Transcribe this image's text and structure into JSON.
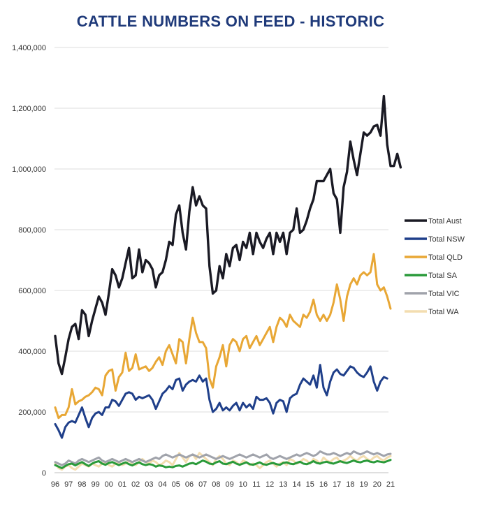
{
  "chart_data": {
    "type": "line",
    "title": "CATTLE NUMBERS ON FEED - HISTORIC",
    "xlabel": "",
    "ylabel": "",
    "x_tick_labels": [
      "96",
      "97",
      "98",
      "99",
      "00",
      "01",
      "02",
      "03",
      "04",
      "05",
      "06",
      "07",
      "08",
      "09",
      "10",
      "11",
      "12",
      "13",
      "14",
      "15",
      "16",
      "17",
      "18",
      "19",
      "20",
      "21"
    ],
    "x_start_year": 1996,
    "points_per_year": 4,
    "y_tick_labels": [
      "0",
      "200,000",
      "400,000",
      "600,000",
      "800,000",
      "1,000,000",
      "1,200,000",
      "1,400,000"
    ],
    "ylim": [
      0,
      1400000
    ],
    "grid": true,
    "legend_position": "right",
    "series": [
      {
        "name": "Total Aust",
        "color": "#1a1a24",
        "values": [
          450000,
          360000,
          325000,
          380000,
          440000,
          480000,
          490000,
          440000,
          535000,
          520000,
          450000,
          500000,
          540000,
          580000,
          560000,
          520000,
          590000,
          670000,
          650000,
          610000,
          640000,
          690000,
          740000,
          640000,
          650000,
          735000,
          660000,
          700000,
          690000,
          670000,
          610000,
          650000,
          660000,
          700000,
          760000,
          750000,
          850000,
          880000,
          790000,
          735000,
          860000,
          940000,
          880000,
          910000,
          880000,
          870000,
          680000,
          590000,
          600000,
          680000,
          640000,
          720000,
          680000,
          740000,
          750000,
          700000,
          760000,
          740000,
          790000,
          720000,
          790000,
          760000,
          740000,
          770000,
          790000,
          720000,
          790000,
          760000,
          790000,
          720000,
          790000,
          800000,
          870000,
          790000,
          800000,
          830000,
          870000,
          900000,
          960000,
          960000,
          960000,
          980000,
          1000000,
          920000,
          900000,
          790000,
          940000,
          990000,
          1090000,
          1030000,
          980000,
          1050000,
          1120000,
          1110000,
          1120000,
          1140000,
          1145000,
          1110000,
          1240000,
          1080000,
          1010000,
          1010000,
          1050000,
          1005000
        ]
      },
      {
        "name": "Total NSW",
        "color": "#1f3f8a",
        "values": [
          160000,
          140000,
          115000,
          150000,
          165000,
          170000,
          165000,
          190000,
          215000,
          180000,
          150000,
          180000,
          195000,
          200000,
          190000,
          215000,
          215000,
          240000,
          235000,
          220000,
          240000,
          260000,
          265000,
          260000,
          240000,
          250000,
          245000,
          250000,
          255000,
          240000,
          210000,
          235000,
          260000,
          270000,
          285000,
          275000,
          305000,
          310000,
          270000,
          290000,
          300000,
          305000,
          300000,
          320000,
          300000,
          310000,
          240000,
          200000,
          210000,
          230000,
          205000,
          215000,
          205000,
          220000,
          230000,
          205000,
          230000,
          215000,
          225000,
          210000,
          250000,
          240000,
          240000,
          245000,
          230000,
          195000,
          230000,
          240000,
          235000,
          200000,
          245000,
          255000,
          260000,
          290000,
          310000,
          300000,
          290000,
          320000,
          280000,
          355000,
          280000,
          255000,
          300000,
          330000,
          340000,
          325000,
          320000,
          335000,
          350000,
          345000,
          330000,
          320000,
          315000,
          330000,
          350000,
          300000,
          270000,
          300000,
          315000,
          310000
        ]
      },
      {
        "name": "Total QLD",
        "color": "#e8a735",
        "values": [
          215000,
          180000,
          190000,
          190000,
          215000,
          275000,
          225000,
          235000,
          240000,
          250000,
          255000,
          265000,
          280000,
          275000,
          255000,
          320000,
          335000,
          340000,
          270000,
          315000,
          330000,
          395000,
          335000,
          345000,
          390000,
          340000,
          345000,
          350000,
          335000,
          345000,
          365000,
          380000,
          355000,
          400000,
          420000,
          390000,
          360000,
          440000,
          430000,
          360000,
          440000,
          510000,
          460000,
          430000,
          430000,
          410000,
          310000,
          280000,
          350000,
          380000,
          420000,
          350000,
          420000,
          440000,
          430000,
          400000,
          440000,
          450000,
          410000,
          430000,
          450000,
          420000,
          440000,
          460000,
          480000,
          430000,
          480000,
          510000,
          500000,
          480000,
          520000,
          500000,
          490000,
          480000,
          520000,
          510000,
          530000,
          570000,
          520000,
          500000,
          520000,
          500000,
          520000,
          560000,
          620000,
          570000,
          500000,
          580000,
          620000,
          640000,
          620000,
          650000,
          660000,
          650000,
          660000,
          720000,
          620000,
          600000,
          610000,
          580000,
          540000
        ]
      },
      {
        "name": "Total SA",
        "color": "#2a9a3a",
        "values": [
          25000,
          20000,
          15000,
          22000,
          28000,
          30000,
          24000,
          30000,
          35000,
          28000,
          22000,
          30000,
          35000,
          38000,
          30000,
          26000,
          32000,
          35000,
          30000,
          25000,
          30000,
          34000,
          28000,
          24000,
          30000,
          34000,
          28000,
          25000,
          28000,
          26000,
          20000,
          24000,
          22000,
          18000,
          20000,
          18000,
          22000,
          24000,
          20000,
          25000,
          30000,
          32000,
          28000,
          34000,
          40000,
          36000,
          30000,
          28000,
          34000,
          38000,
          30000,
          28000,
          32000,
          36000,
          30000,
          26000,
          30000,
          34000,
          28000,
          26000,
          30000,
          34000,
          28000,
          26000,
          30000,
          32000,
          28000,
          26000,
          32000,
          34000,
          30000,
          28000,
          32000,
          36000,
          30000,
          28000,
          32000,
          38000,
          32000,
          30000,
          34000,
          36000,
          32000,
          30000,
          34000,
          38000,
          34000,
          32000,
          36000,
          40000,
          36000,
          34000,
          38000,
          40000,
          36000,
          34000,
          38000,
          36000,
          34000,
          38000,
          42000
        ]
      },
      {
        "name": "Total VIC",
        "color": "#a0a3ab",
        "values": [
          35000,
          30000,
          25000,
          30000,
          40000,
          35000,
          30000,
          40000,
          45000,
          40000,
          35000,
          40000,
          45000,
          50000,
          40000,
          35000,
          40000,
          45000,
          40000,
          35000,
          40000,
          45000,
          40000,
          35000,
          40000,
          45000,
          40000,
          35000,
          40000,
          45000,
          50000,
          45000,
          55000,
          60000,
          55000,
          50000,
          55000,
          60000,
          55000,
          50000,
          55000,
          60000,
          55000,
          50000,
          55000,
          60000,
          55000,
          50000,
          45000,
          50000,
          55000,
          50000,
          45000,
          50000,
          55000,
          60000,
          55000,
          50000,
          55000,
          60000,
          55000,
          50000,
          55000,
          60000,
          50000,
          45000,
          50000,
          55000,
          50000,
          45000,
          50000,
          55000,
          60000,
          55000,
          60000,
          65000,
          60000,
          55000,
          60000,
          70000,
          65000,
          60000,
          60000,
          65000,
          60000,
          55000,
          60000,
          65000,
          60000,
          70000,
          65000,
          60000,
          65000,
          70000,
          65000,
          60000,
          65000,
          60000,
          55000,
          60000,
          62000
        ]
      },
      {
        "name": "Total WA",
        "color": "#f3ddb0",
        "values": [
          30000,
          15000,
          10000,
          20000,
          25000,
          15000,
          10000,
          20000,
          30000,
          25000,
          20000,
          30000,
          25000,
          20000,
          30000,
          35000,
          25000,
          20000,
          30000,
          35000,
          25000,
          30000,
          40000,
          30000,
          25000,
          35000,
          45000,
          35000,
          30000,
          40000,
          35000,
          25000,
          30000,
          40000,
          35000,
          25000,
          45000,
          65000,
          50000,
          35000,
          55000,
          60000,
          45000,
          65000,
          55000,
          45000,
          35000,
          25000,
          45000,
          55000,
          45000,
          30000,
          25000,
          40000,
          35000,
          25000,
          40000,
          35000,
          25000,
          30000,
          25000,
          15000,
          25000,
          35000,
          40000,
          30000,
          20000,
          30000,
          35000,
          25000,
          45000,
          40000,
          30000,
          35000,
          45000,
          40000,
          30000,
          45000,
          40000,
          30000,
          50000,
          40000,
          35000,
          45000,
          50000,
          35000,
          40000,
          45000,
          55000,
          45000,
          40000,
          50000,
          55000,
          45000,
          40000,
          50000,
          55000,
          45000,
          40000,
          50000,
          55000
        ]
      }
    ]
  }
}
